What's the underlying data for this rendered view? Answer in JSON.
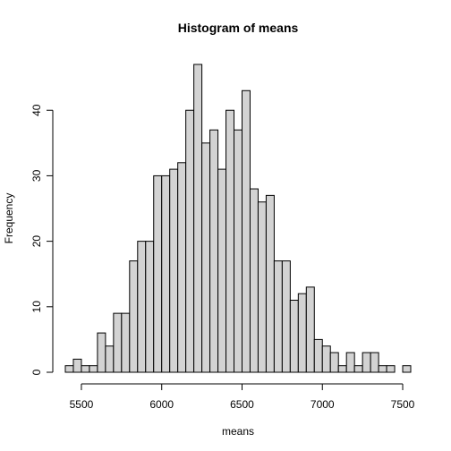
{
  "chart_data": {
    "type": "bar",
    "title": "Histogram of means",
    "xlabel": "means",
    "ylabel": "Frequency",
    "bin_width": 50,
    "bin_starts": [
      5400,
      5450,
      5500,
      5550,
      5600,
      5650,
      5700,
      5750,
      5800,
      5850,
      5900,
      5950,
      6000,
      6050,
      6100,
      6150,
      6200,
      6250,
      6300,
      6350,
      6400,
      6450,
      6500,
      6550,
      6600,
      6650,
      6700,
      6750,
      6800,
      6850,
      6900,
      6950,
      7000,
      7050,
      7100,
      7150,
      7200,
      7250,
      7300,
      7350,
      7400,
      7450,
      7500
    ],
    "values": [
      1,
      2,
      1,
      1,
      6,
      4,
      9,
      9,
      17,
      20,
      20,
      30,
      30,
      31,
      32,
      40,
      47,
      35,
      37,
      31,
      40,
      37,
      43,
      28,
      26,
      27,
      17,
      17,
      11,
      12,
      13,
      5,
      4,
      3,
      1,
      3,
      1,
      3,
      3,
      1,
      1,
      0,
      1
    ],
    "xlim": [
      5400,
      7550
    ],
    "ylim": [
      0,
      47
    ],
    "x_ticks": [
      5500,
      6000,
      6500,
      7000,
      7500
    ],
    "y_ticks": [
      0,
      10,
      20,
      30,
      40
    ],
    "grid": false,
    "bar_color": "#d3d3d3"
  }
}
